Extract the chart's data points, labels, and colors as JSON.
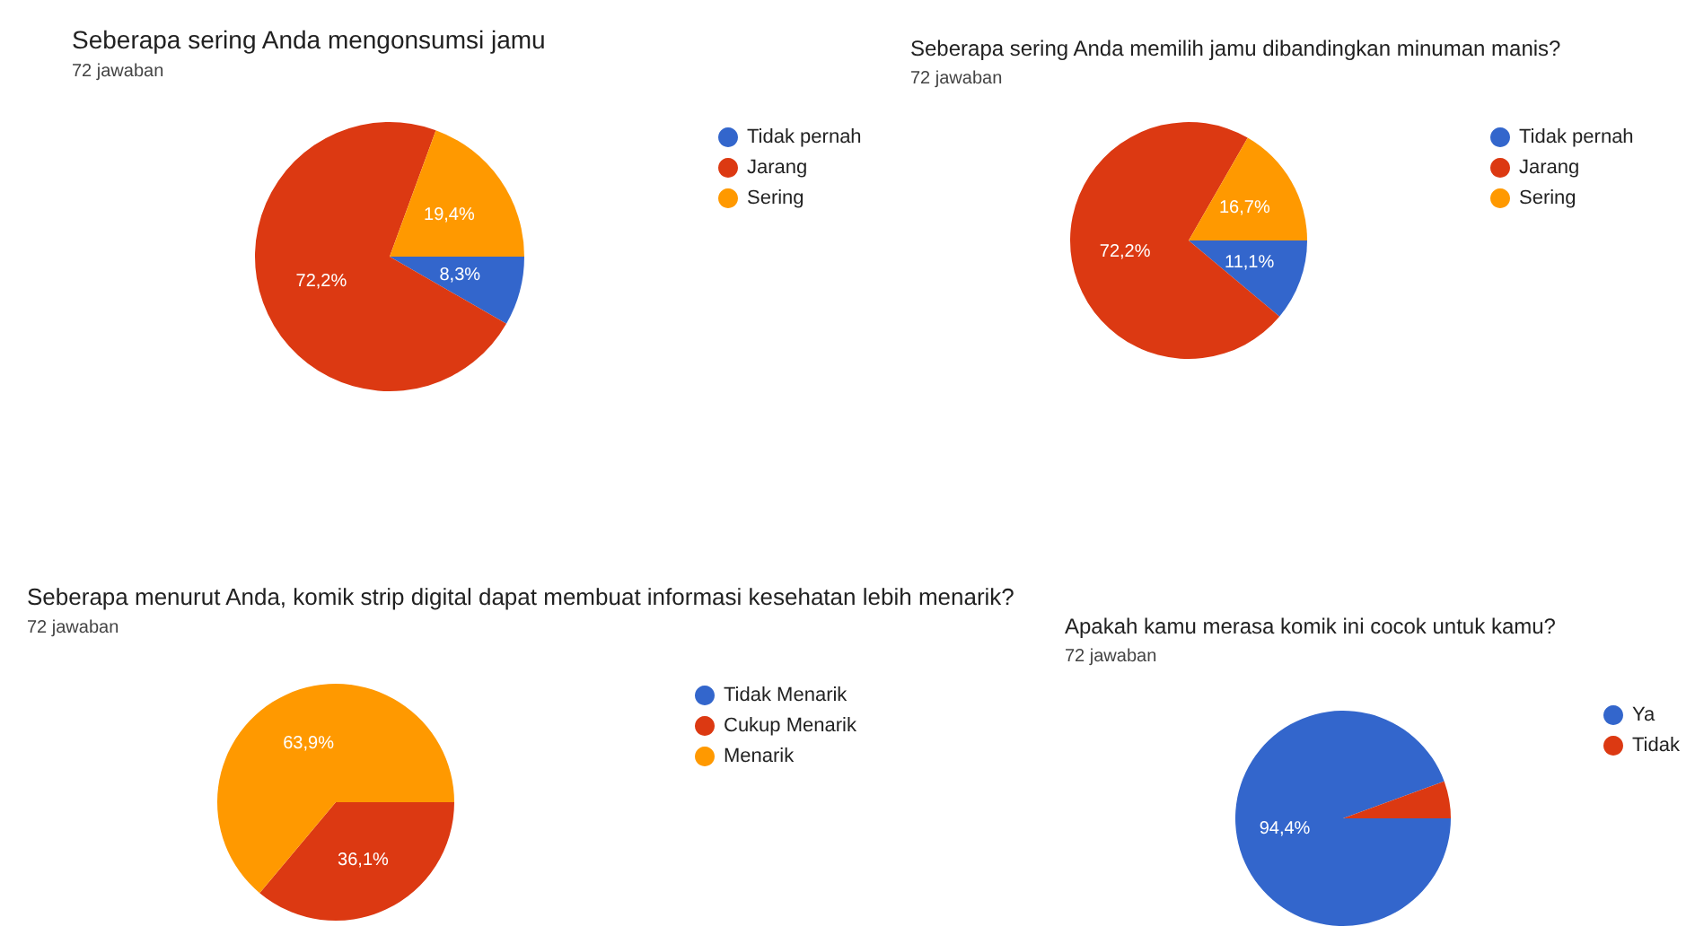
{
  "chart_data": [
    {
      "type": "pie",
      "title": "Seberapa sering Anda mengonsumsi jamu",
      "subtitle": "72 jawaban",
      "categories": [
        "Tidak pernah",
        "Jarang",
        "Sering"
      ],
      "values": [
        8.3,
        72.2,
        19.4
      ],
      "colors": [
        "#3366cc",
        "#dc3912",
        "#ff9900"
      ],
      "value_labels": [
        "8,3%",
        "72,2%",
        "19,4%"
      ],
      "legend": "top right"
    },
    {
      "type": "pie",
      "title": "Seberapa sering Anda memilih jamu dibandingkan minuman manis?",
      "subtitle": "72 jawaban",
      "categories": [
        "Tidak pernah",
        "Jarang",
        "Sering"
      ],
      "values": [
        11.1,
        72.2,
        16.7
      ],
      "colors": [
        "#3366cc",
        "#dc3912",
        "#ff9900"
      ],
      "value_labels": [
        "11,1%",
        "72,2%",
        "16,7%"
      ],
      "legend": "top right"
    },
    {
      "type": "pie",
      "title": "Seberapa menurut Anda, komik strip digital dapat membuat informasi kesehatan lebih menarik?",
      "subtitle": "72 jawaban",
      "categories": [
        "Tidak Menarik",
        "Cukup Menarik",
        "Menarik"
      ],
      "values": [
        0,
        36.1,
        63.9
      ],
      "colors": [
        "#3366cc",
        "#dc3912",
        "#ff9900"
      ],
      "value_labels": [
        null,
        "36,1%",
        "63,9%"
      ],
      "legend": "top right"
    },
    {
      "type": "pie",
      "title": "Apakah kamu merasa komik ini cocok untuk kamu?",
      "subtitle": "72 jawaban",
      "categories": [
        "Ya",
        "Tidak"
      ],
      "values": [
        94.4,
        5.6
      ],
      "colors": [
        "#3366cc",
        "#dc3912"
      ],
      "value_labels": [
        "94,4%",
        null
      ],
      "legend": "top right"
    }
  ]
}
